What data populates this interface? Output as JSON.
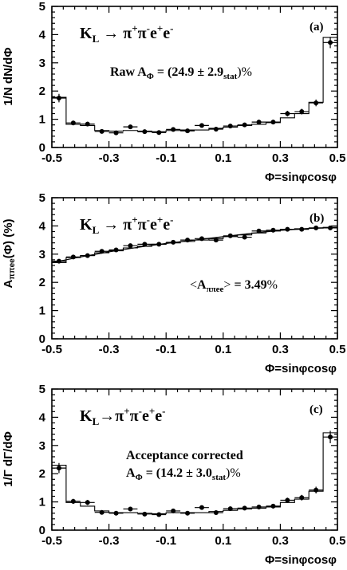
{
  "colors": {
    "ink": "#000000",
    "background": "#ffffff"
  },
  "chart_data": [
    {
      "type": "line",
      "panel_tag": "(a)",
      "ylabel": "1/N dN/dΦ",
      "xlabel": "Φ=sinφcosφ",
      "xlim": [
        -0.5,
        0.5
      ],
      "ylim": [
        0,
        5
      ],
      "xticks": [
        -0.5,
        -0.3,
        -0.1,
        0.1,
        0.3,
        0.5
      ],
      "yticks": [
        0,
        1,
        2,
        3,
        4,
        5
      ],
      "annotations": [
        {
          "text": "K_L → π⁺π⁻e⁺e⁻"
        },
        {
          "text": "Raw A_Φ = (24.9 ± 2.9_stat)%"
        }
      ],
      "series": [
        {
          "style": "histogram",
          "x": [
            -0.5,
            -0.45,
            -0.4,
            -0.35,
            -0.3,
            -0.25,
            -0.2,
            -0.15,
            -0.1,
            -0.05,
            0.0,
            0.05,
            0.1,
            0.15,
            0.2,
            0.25,
            0.3,
            0.35,
            0.4,
            0.45
          ],
          "values": [
            1.78,
            0.82,
            0.78,
            0.6,
            0.58,
            0.6,
            0.58,
            0.56,
            0.6,
            0.62,
            0.62,
            0.68,
            0.72,
            0.78,
            0.82,
            0.88,
            1.05,
            1.2,
            1.6,
            3.9
          ]
        },
        {
          "style": "markers",
          "x": [
            -0.475,
            -0.425,
            -0.375,
            -0.325,
            -0.275,
            -0.225,
            -0.175,
            -0.125,
            -0.075,
            -0.025,
            0.025,
            0.075,
            0.125,
            0.175,
            0.225,
            0.275,
            0.325,
            0.375,
            0.425,
            0.475
          ],
          "values": [
            1.75,
            0.87,
            0.83,
            0.57,
            0.52,
            0.73,
            0.56,
            0.53,
            0.64,
            0.59,
            0.78,
            0.65,
            0.76,
            0.8,
            0.9,
            0.9,
            1.2,
            1.27,
            1.58,
            3.72
          ],
          "errors": [
            0.15,
            0.08,
            0.08,
            0.06,
            0.06,
            0.07,
            0.06,
            0.06,
            0.06,
            0.06,
            0.07,
            0.06,
            0.07,
            0.07,
            0.08,
            0.08,
            0.1,
            0.1,
            0.12,
            0.2
          ]
        }
      ]
    },
    {
      "type": "line",
      "panel_tag": "(b)",
      "ylabel": "A_ππee(Φ)  (%)",
      "xlabel": "Φ=sinφcosφ",
      "xlim": [
        -0.5,
        0.5
      ],
      "ylim": [
        0,
        5
      ],
      "xticks": [
        -0.5,
        -0.3,
        -0.1,
        0.1,
        0.3,
        0.5
      ],
      "yticks": [
        0,
        1,
        2,
        3,
        4,
        5
      ],
      "annotations": [
        {
          "text": "K_L → π⁺π⁻e⁺e⁻"
        },
        {
          "text": "<A_ππee> = 3.49%"
        }
      ],
      "series": [
        {
          "style": "histogram",
          "x": [
            -0.5,
            -0.45,
            -0.4,
            -0.35,
            -0.3,
            -0.25,
            -0.2,
            -0.15,
            -0.1,
            -0.05,
            0.0,
            0.05,
            0.1,
            0.15,
            0.2,
            0.25,
            0.3,
            0.35,
            0.4,
            0.45
          ],
          "values": [
            2.7,
            2.88,
            2.95,
            3.05,
            3.12,
            3.22,
            3.28,
            3.35,
            3.4,
            3.45,
            3.5,
            3.55,
            3.62,
            3.68,
            3.75,
            3.82,
            3.88,
            3.9,
            3.92,
            3.95
          ]
        },
        {
          "style": "curve",
          "x": [
            -0.5,
            -0.4,
            -0.3,
            -0.2,
            -0.1,
            0.0,
            0.1,
            0.2,
            0.3,
            0.4,
            0.5
          ],
          "values": [
            2.7,
            2.9,
            3.08,
            3.24,
            3.38,
            3.5,
            3.62,
            3.74,
            3.84,
            3.91,
            3.95
          ]
        },
        {
          "style": "markers",
          "x": [
            -0.475,
            -0.425,
            -0.375,
            -0.325,
            -0.275,
            -0.225,
            -0.175,
            -0.125,
            -0.075,
            -0.025,
            0.025,
            0.075,
            0.125,
            0.175,
            0.225,
            0.275,
            0.325,
            0.375,
            0.425,
            0.475
          ],
          "values": [
            2.75,
            2.9,
            2.95,
            3.1,
            3.15,
            3.3,
            3.35,
            3.35,
            3.42,
            3.5,
            3.55,
            3.5,
            3.65,
            3.6,
            3.82,
            3.85,
            3.88,
            3.88,
            3.93,
            3.93
          ],
          "errors": [
            0.04,
            0.04,
            0.04,
            0.04,
            0.04,
            0.04,
            0.04,
            0.04,
            0.04,
            0.04,
            0.04,
            0.04,
            0.04,
            0.04,
            0.04,
            0.04,
            0.04,
            0.04,
            0.04,
            0.04
          ]
        }
      ]
    },
    {
      "type": "line",
      "panel_tag": "(c)",
      "ylabel": "1/Γ dΓ/dΦ",
      "xlabel": "Φ=sinφcosφ",
      "xlim": [
        -0.5,
        0.5
      ],
      "ylim": [
        0,
        5
      ],
      "xticks": [
        -0.5,
        -0.3,
        -0.1,
        0.1,
        0.3,
        0.5
      ],
      "yticks": [
        0,
        1,
        2,
        3,
        4,
        5
      ],
      "annotations": [
        {
          "text": "K_L→π⁺π⁻e⁺e⁻"
        },
        {
          "text": "Acceptance corrected"
        },
        {
          "text": "A_Φ = (14.2 ± 3.0_stat)%"
        }
      ],
      "series": [
        {
          "style": "histogram",
          "x": [
            -0.5,
            -0.45,
            -0.4,
            -0.35,
            -0.3,
            -0.25,
            -0.2,
            -0.15,
            -0.1,
            -0.05,
            0.0,
            0.05,
            0.1,
            0.15,
            0.2,
            0.25,
            0.3,
            0.35,
            0.4,
            0.45
          ],
          "values": [
            2.3,
            0.98,
            0.85,
            0.68,
            0.62,
            0.62,
            0.6,
            0.58,
            0.62,
            0.62,
            0.62,
            0.66,
            0.7,
            0.75,
            0.78,
            0.82,
            0.98,
            1.1,
            1.38,
            3.45
          ]
        },
        {
          "style": "markers",
          "x": [
            -0.475,
            -0.425,
            -0.375,
            -0.325,
            -0.275,
            -0.225,
            -0.175,
            -0.125,
            -0.075,
            -0.025,
            0.025,
            0.075,
            0.125,
            0.175,
            0.225,
            0.275,
            0.325,
            0.375,
            0.425,
            0.475
          ],
          "values": [
            2.2,
            1.02,
            0.98,
            0.63,
            0.6,
            0.75,
            0.57,
            0.55,
            0.68,
            0.6,
            0.8,
            0.62,
            0.76,
            0.78,
            0.82,
            0.85,
            1.06,
            1.15,
            1.42,
            3.3
          ],
          "errors": [
            0.18,
            0.09,
            0.09,
            0.07,
            0.07,
            0.07,
            0.06,
            0.06,
            0.07,
            0.06,
            0.07,
            0.06,
            0.07,
            0.07,
            0.07,
            0.08,
            0.09,
            0.1,
            0.12,
            0.22
          ]
        }
      ]
    }
  ]
}
